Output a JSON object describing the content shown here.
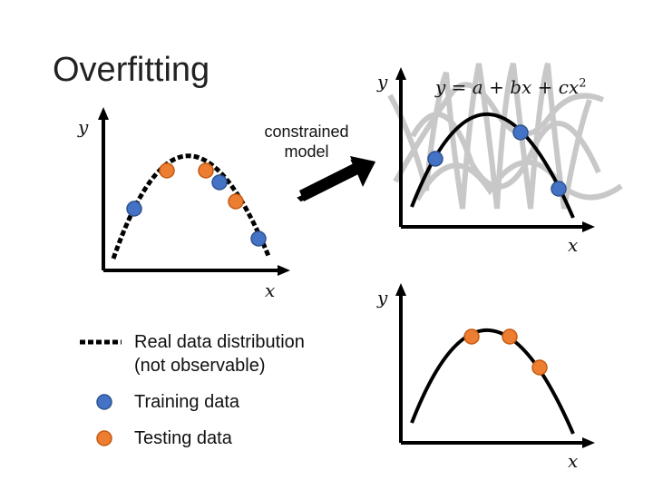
{
  "slide": {
    "title": "Overfitting",
    "constrained_label_line1": "constrained",
    "constrained_label_line2": "model",
    "equation": {
      "lhs": "y",
      "eq": " = ",
      "a": "a",
      "plus1": " + ",
      "bx": "bx",
      "plus2": " + ",
      "cx": "cx",
      "exp": "2"
    },
    "plots": {
      "left": {
        "ylabel": "y",
        "xlabel": "x"
      },
      "top_right": {
        "ylabel": "y",
        "xlabel": "x"
      },
      "bottom_right": {
        "ylabel": "y",
        "xlabel": "x"
      }
    },
    "legend": {
      "real_line1": "Real data distribution",
      "real_line2": "(not observable)",
      "training": "Training data",
      "testing": "Testing data"
    },
    "colors": {
      "training": "#4472c4",
      "testing": "#ed7d31",
      "curve": "#000000",
      "faded_curves": "#c8c8c8"
    }
  }
}
